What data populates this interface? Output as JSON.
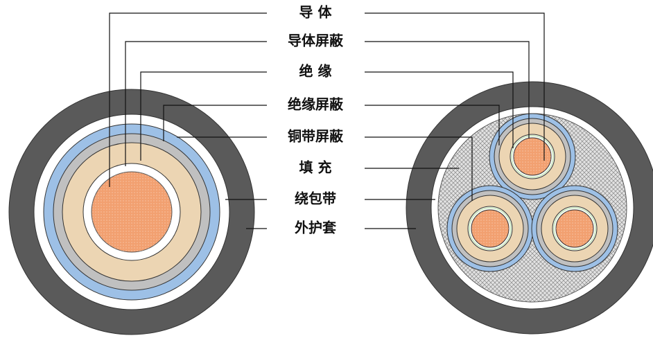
{
  "labels": {
    "conductor": "导 体",
    "conductor_shield": "导体屏蔽",
    "insulation": "绝 缘",
    "insulation_shield": "绝缘屏蔽",
    "copper_tape_shield": "铜带屏蔽",
    "filler": "填 充",
    "wrapping_tape": "绕包带",
    "outer_sheath": "外护套"
  },
  "colors": {
    "outer_sheath": "#5a5a5a",
    "wrapping_tape": "#ffffff",
    "copper_tape_shield": "#9dc0e6",
    "insulation_shield": "#c0c0c0",
    "insulation": "#ecd5b3",
    "conductor_shield": "#ffffff",
    "conductor": "#f2a070",
    "filler": "#dcdcdc",
    "line": "#111111"
  }
}
